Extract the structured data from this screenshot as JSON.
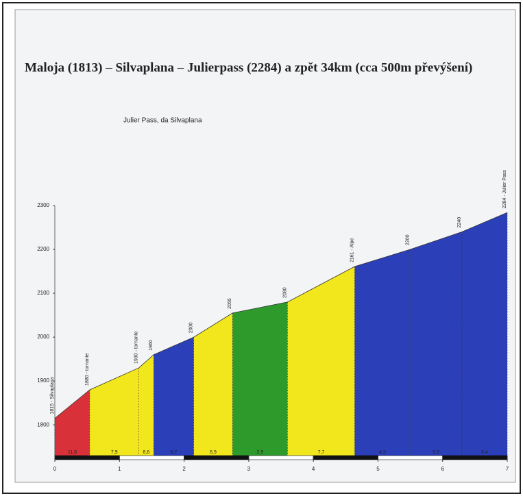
{
  "chart_data": {
    "type": "elevation_profile",
    "title": "Maloja (1813) – Silvaplana – Julierpass (2284) a zpět 34km (cca 500m převýšení)",
    "subtitle": "Julier Pass, da Silvaplana",
    "x": [
      0,
      0.54,
      1.3,
      1.53,
      2.15,
      2.75,
      3.6,
      4.64,
      5.5,
      6.3,
      7
    ],
    "values": [
      1815,
      1880,
      1930,
      1960,
      2000,
      2055,
      2080,
      2161,
      2200,
      2240,
      2284
    ],
    "point_labels": [
      "1815 - Silvaplana",
      "1880 - tornante",
      "1930 - tornante",
      "1960",
      "2000",
      "2055",
      "2080",
      "2161 - Alpe",
      "2200",
      "2240",
      "2284 - Julier Pass"
    ],
    "segment_colors": [
      "#d8313a",
      "#f2e61c",
      "#f2e61c",
      "#2b3fb8",
      "#f2e61c",
      "#2f9a2c",
      "#f2e61c",
      "#2b3fb8",
      "#2b3fb8",
      "#2b3fb8"
    ],
    "segment_labels": [
      "11,8",
      "7,9",
      "8,6",
      "6,7",
      "6,9",
      "2,9",
      "7,7",
      "4,3",
      "5,0",
      "6,4"
    ],
    "xlim": [
      0,
      7
    ],
    "xticks": [
      0,
      1,
      2,
      3,
      4,
      5,
      6,
      7
    ],
    "ylim": [
      1730,
      2300
    ],
    "yticks": [
      1800,
      1900,
      2000,
      2100,
      2200,
      2300
    ]
  }
}
